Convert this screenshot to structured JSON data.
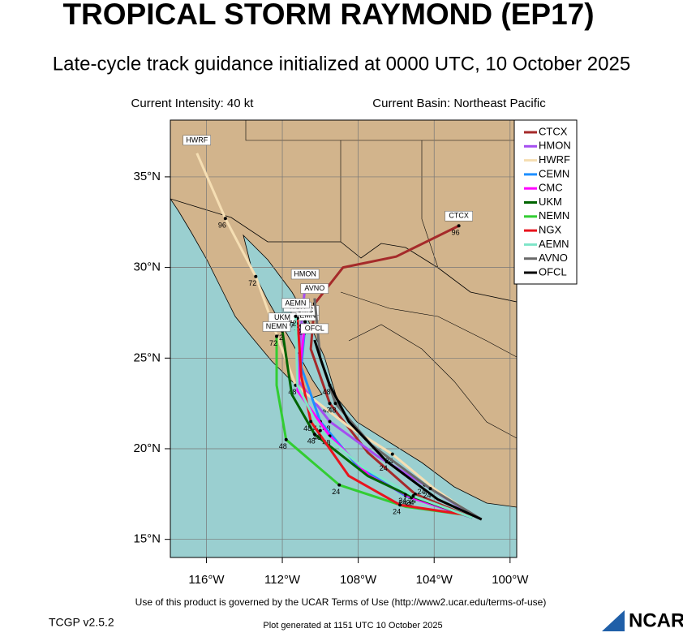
{
  "header": {
    "title": "TROPICAL STORM RAYMOND (EP17)",
    "subtitle": "Late-cycle track guidance initialized at 0000 UTC, 10 October 2025",
    "intensity": "Current Intensity: 40 kt",
    "basin": "Current Basin: Northeast Pacific"
  },
  "map": {
    "xlim": [
      -117.9,
      -99.65
    ],
    "ylim": [
      14.0,
      38.13
    ],
    "xticks": [
      {
        "value": -116,
        "label": "116°W"
      },
      {
        "value": -112,
        "label": "112°W"
      },
      {
        "value": -108,
        "label": "108°W"
      },
      {
        "value": -104,
        "label": "104°W"
      },
      {
        "value": -100,
        "label": "100°W"
      }
    ],
    "yticks": [
      {
        "value": 15,
        "label": "15°N"
      },
      {
        "value": 20,
        "label": "20°N"
      },
      {
        "value": 25,
        "label": "25°N"
      },
      {
        "value": 30,
        "label": "30°N"
      },
      {
        "value": 35,
        "label": "35°N"
      }
    ],
    "grid": true,
    "tracks": [
      {
        "name": "CTCX",
        "color": "#a52a2a",
        "lon": [
          -102,
          -105,
          -107.5,
          -109.5,
          -110.5,
          -110.3,
          -108.8,
          -106,
          -102.7
        ],
        "lat": [
          16.2,
          17.5,
          19.8,
          22.5,
          25.5,
          28.0,
          30.0,
          30.6,
          32.3
        ],
        "hours": [
          null,
          24,
          null,
          48,
          null,
          72,
          null,
          null,
          96
        ]
      },
      {
        "name": "HMON",
        "color": "#a54ef0",
        "lon": [
          -101.9,
          -104.5,
          -107,
          -109.5,
          -111.2,
          -111.0,
          -110.8
        ],
        "lat": [
          16.3,
          18,
          19.6,
          21.5,
          23.8,
          26.8,
          29.0
        ],
        "hours": [
          null,
          24,
          null,
          48,
          null,
          72,
          null
        ]
      },
      {
        "name": "HWRF",
        "color": "#f5deb3",
        "lon": [
          -101.9,
          -104,
          -106.2,
          -108.6,
          -111.3,
          -112.2,
          -113.4,
          -115,
          -116.5
        ],
        "lat": [
          16.3,
          17.8,
          19.7,
          21.3,
          23.5,
          26.0,
          29.5,
          32.7,
          36.3
        ],
        "hours": [
          null,
          null,
          24,
          null,
          48,
          null,
          72,
          96,
          null
        ]
      },
      {
        "name": "CEMN",
        "color": "#1e90ff",
        "lon": [
          -102,
          -105.5,
          -108,
          -110,
          -111,
          -110.8
        ],
        "lat": [
          16.2,
          17.4,
          19.0,
          21.5,
          24.5,
          26.8
        ],
        "hours": [
          null,
          24,
          null,
          48,
          null,
          72
        ]
      },
      {
        "name": "CMC",
        "color": "#ff00ff",
        "lon": [
          -102,
          -105.2,
          -107.4,
          -109.5,
          -111.2,
          -110.8
        ],
        "lat": [
          16.2,
          17.3,
          18.5,
          20.7,
          23.2,
          27.0
        ],
        "hours": [
          null,
          24,
          null,
          48,
          null,
          72
        ]
      },
      {
        "name": "UKM",
        "color": "#006400",
        "lon": [
          -102,
          -105.5,
          -107.5,
          -110.3,
          -111.5,
          -112.0
        ],
        "lat": [
          16.2,
          17.5,
          18.5,
          20.8,
          23.0,
          26.5
        ],
        "hours": [
          null,
          24,
          null,
          48,
          null,
          72
        ]
      },
      {
        "name": "NEMN",
        "color": "#32cd32",
        "lon": [
          -102,
          -105.5,
          -109,
          -111.8,
          -112.3,
          -112.3
        ],
        "lat": [
          16.3,
          16.8,
          18,
          20.5,
          23.5,
          26.2
        ],
        "hours": [
          null,
          null,
          24,
          48,
          null,
          72
        ]
      },
      {
        "name": "NGX",
        "color": "#e8141e",
        "lon": [
          -102,
          -105.8,
          -108.5,
          -110.5,
          -111.0,
          -111.2
        ],
        "lat": [
          16.3,
          16.9,
          18.5,
          21.5,
          24,
          27.2
        ],
        "hours": [
          null,
          24,
          null,
          48,
          null,
          72
        ]
      },
      {
        "name": "AEMN",
        "color": "#7fe5c8",
        "lon": [
          -102,
          -105.1,
          -107.8,
          -110,
          -111.2,
          -111.3
        ],
        "lat": [
          16.2,
          17.4,
          19,
          21,
          23.5,
          27.3
        ],
        "hours": [
          null,
          24,
          null,
          48,
          null,
          72
        ]
      },
      {
        "name": "AVNO",
        "color": "#696969",
        "lon": [
          -101.5,
          -104.2,
          -107.3,
          -109.2,
          -110.0,
          -110.3
        ],
        "lat": [
          16.1,
          17.8,
          20.2,
          22.5,
          25.0,
          28.3
        ],
        "hours": [
          null,
          24,
          null,
          48,
          null,
          null
        ]
      },
      {
        "name": "OFCL",
        "color": "#000000",
        "lon": [
          -101.5,
          -103.8,
          -106.5,
          -108.5,
          -109.5,
          -110.0,
          -110.3
        ],
        "lat": [
          16.1,
          17.2,
          19.3,
          21.5,
          23.5,
          25.0,
          26.0
        ],
        "hours": [
          null,
          null,
          24,
          null,
          48,
          null,
          null
        ]
      }
    ]
  },
  "footer": {
    "terms": "Use of this product is governed by the UCAR Terms of Use (http://www2.ucar.edu/terms-of-use)",
    "version": "TCGP v2.5.2",
    "generated": "Plot generated at 1151 UTC   10 October 2025",
    "logo": "NCAR"
  }
}
